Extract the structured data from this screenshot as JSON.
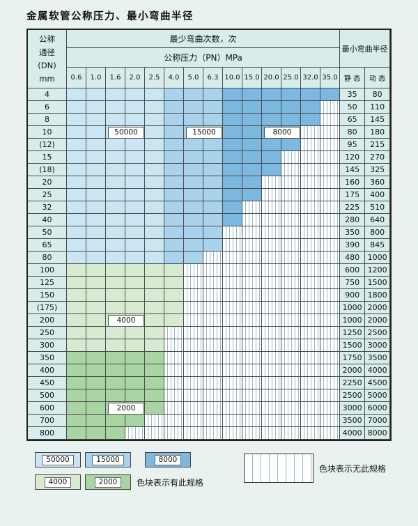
{
  "title": "金属软管公称压力、最小弯曲半径",
  "header": {
    "corner_lines": [
      "公称",
      "通径",
      "(DN)",
      "mm"
    ],
    "bend_cycles": "最少弯曲次数，次",
    "pressure": "公称压力（PN）MPa",
    "radius": "最小弯曲半径",
    "static_label": "静 态",
    "dynamic_label": "动 态"
  },
  "columns": [
    "0.6",
    "1.0",
    "1.6",
    "2.0",
    "2.5",
    "4.0",
    "5.0",
    "6.3",
    "10.0",
    "15.0",
    "20.0",
    "25.0",
    "32.0",
    "35.0"
  ],
  "rows": [
    {
      "dn": "4",
      "static": "35",
      "dynamic": "80",
      "max_col": 13,
      "group": "blue"
    },
    {
      "dn": "6",
      "static": "50",
      "dynamic": "110",
      "max_col": 12,
      "group": "blue"
    },
    {
      "dn": "8",
      "static": "65",
      "dynamic": "145",
      "max_col": 12,
      "group": "blue"
    },
    {
      "dn": "10",
      "static": "80",
      "dynamic": "180",
      "max_col": 11,
      "group": "blue"
    },
    {
      "dn": "(12)",
      "static": "95",
      "dynamic": "215",
      "max_col": 11,
      "group": "blue"
    },
    {
      "dn": "15",
      "static": "120",
      "dynamic": "270",
      "max_col": 10,
      "group": "blue"
    },
    {
      "dn": "(18)",
      "static": "145",
      "dynamic": "325",
      "max_col": 10,
      "group": "blue"
    },
    {
      "dn": "20",
      "static": "160",
      "dynamic": "360",
      "max_col": 9,
      "group": "blue"
    },
    {
      "dn": "25",
      "static": "175",
      "dynamic": "400",
      "max_col": 9,
      "group": "blue"
    },
    {
      "dn": "32",
      "static": "225",
      "dynamic": "510",
      "max_col": 8,
      "group": "blue"
    },
    {
      "dn": "40",
      "static": "280",
      "dynamic": "640",
      "max_col": 8,
      "group": "blue"
    },
    {
      "dn": "50",
      "static": "350",
      "dynamic": "800",
      "max_col": 7,
      "group": "blue"
    },
    {
      "dn": "65",
      "static": "390",
      "dynamic": "845",
      "max_col": 7,
      "group": "blue"
    },
    {
      "dn": "80",
      "static": "480",
      "dynamic": "1000",
      "max_col": 6,
      "group": "blue"
    },
    {
      "dn": "100",
      "static": "600",
      "dynamic": "1200",
      "max_col": 5,
      "group": "g4000"
    },
    {
      "dn": "125",
      "static": "750",
      "dynamic": "1500",
      "max_col": 5,
      "group": "g4000"
    },
    {
      "dn": "150",
      "static": "900",
      "dynamic": "1800",
      "max_col": 5,
      "group": "g4000"
    },
    {
      "dn": "(175)",
      "static": "1000",
      "dynamic": "2000",
      "max_col": 5,
      "group": "g4000"
    },
    {
      "dn": "200",
      "static": "1000",
      "dynamic": "2000",
      "max_col": 5,
      "group": "g4000"
    },
    {
      "dn": "250",
      "static": "1250",
      "dynamic": "2500",
      "max_col": 4,
      "group": "g4000"
    },
    {
      "dn": "300",
      "static": "1500",
      "dynamic": "3000",
      "max_col": 4,
      "group": "g4000"
    },
    {
      "dn": "350",
      "static": "1750",
      "dynamic": "3500",
      "max_col": 4,
      "group": "g2000"
    },
    {
      "dn": "400",
      "static": "2000",
      "dynamic": "4000",
      "max_col": 4,
      "group": "g2000"
    },
    {
      "dn": "450",
      "static": "2250",
      "dynamic": "4500",
      "max_col": 4,
      "group": "g2000"
    },
    {
      "dn": "500",
      "static": "2500",
      "dynamic": "5000",
      "max_col": 4,
      "group": "g2000"
    },
    {
      "dn": "600",
      "static": "3000",
      "dynamic": "6000",
      "max_col": 4,
      "group": "g2000"
    },
    {
      "dn": "700",
      "static": "3500",
      "dynamic": "7000",
      "max_col": 3,
      "group": "g2000"
    },
    {
      "dn": "800",
      "static": "4000",
      "dynamic": "8000",
      "max_col": 2,
      "group": "g2000"
    }
  ],
  "overlays": [
    {
      "text": "50000",
      "row": 3,
      "col": 2,
      "colspan": 2
    },
    {
      "text": "15000",
      "row": 3,
      "col": 6,
      "colspan": 2
    },
    {
      "text": "8000",
      "row": 3,
      "col": 10,
      "colspan": 2
    },
    {
      "text": "4000",
      "row": 18,
      "col": 2,
      "colspan": 2
    },
    {
      "text": "2000",
      "row": 25,
      "col": 2,
      "colspan": 2
    }
  ],
  "legend": {
    "items": [
      {
        "label": "50000",
        "zone": "z50000"
      },
      {
        "label": "15000",
        "zone": "z15000"
      },
      {
        "label": "8000",
        "zone": "z8000"
      },
      {
        "label": "4000",
        "zone": "z4000"
      },
      {
        "label": "2000",
        "zone": "z2000"
      }
    ],
    "has_spec_text": "色块表示有此规格",
    "no_spec_text": "色块表示无此规格"
  },
  "colors": {
    "page_bg": "#e9f2ee",
    "panel_bg": "#d8eceb",
    "z50000": "#cbe6f3",
    "z15000": "#a9d3ec",
    "z8000": "#7cb8e0",
    "z4000": "#d6ebd2",
    "z2000": "#a9d4a4",
    "hatch_line": "#9db7c6",
    "border": "#4a4a4a"
  }
}
